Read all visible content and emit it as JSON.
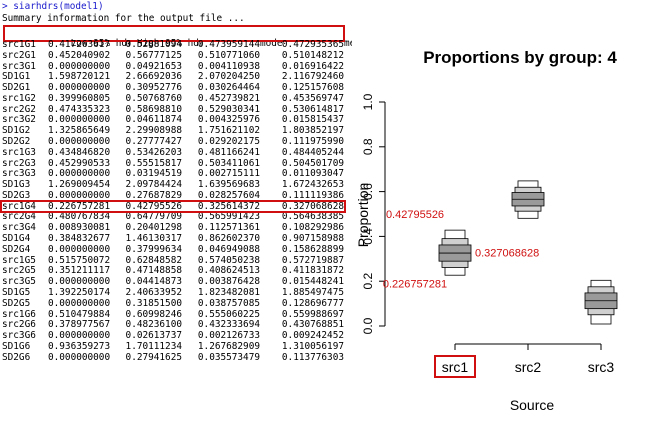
{
  "console": {
    "command": "> siarhdrs(model1)",
    "summary_line": "Summary information for the output file ...",
    "table": {
      "headers": [
        "Low 95% hdr",
        "High 95% hdr",
        "mode",
        "mean"
      ],
      "rows": [
        {
          "name": "src1G1",
          "values": [
            "0.417263617",
            "0.52881094",
            "0.473959144",
            "0.472935365"
          ]
        },
        {
          "name": "src2G1",
          "values": [
            "0.452040902",
            "0.56777125",
            "0.510771060",
            "0.510148212"
          ]
        },
        {
          "name": "src3G1",
          "values": [
            "0.000000000",
            "0.04921653",
            "0.004110938",
            "0.016916422"
          ]
        },
        {
          "name": "SD1G1",
          "values": [
            "1.598720121",
            "2.66692036",
            "2.070204250",
            "2.116792460"
          ]
        },
        {
          "name": "SD2G1",
          "values": [
            "0.000000000",
            "0.30952776",
            "0.030264464",
            "0.125157608"
          ]
        },
        {
          "name": "src1G2",
          "values": [
            "0.399960805",
            "0.50768760",
            "0.452739821",
            "0.453569747"
          ]
        },
        {
          "name": "src2G2",
          "values": [
            "0.474335323",
            "0.58698810",
            "0.529030341",
            "0.530614817"
          ]
        },
        {
          "name": "src3G2",
          "values": [
            "0.000000000",
            "0.04611874",
            "0.004325976",
            "0.015815437"
          ]
        },
        {
          "name": "SD1G2",
          "values": [
            "1.325865649",
            "2.29908988",
            "1.751621102",
            "1.803852197"
          ]
        },
        {
          "name": "SD2G2",
          "values": [
            "0.000000000",
            "0.27777427",
            "0.029202175",
            "0.111975990"
          ]
        },
        {
          "name": "src1G3",
          "values": [
            "0.434846820",
            "0.53426203",
            "0.481166241",
            "0.484405244"
          ]
        },
        {
          "name": "src2G3",
          "values": [
            "0.452990533",
            "0.55515817",
            "0.503411061",
            "0.504501709"
          ]
        },
        {
          "name": "src3G3",
          "values": [
            "0.000000000",
            "0.03194519",
            "0.002715111",
            "0.011093047"
          ]
        },
        {
          "name": "SD1G3",
          "values": [
            "1.269009454",
            "2.09784424",
            "1.639569683",
            "1.672432653"
          ]
        },
        {
          "name": "SD2G3",
          "values": [
            "0.000000000",
            "0.27687829",
            "0.028257604",
            "0.111119386"
          ]
        },
        {
          "name": "src1G4",
          "values": [
            "0.226757281",
            "0.42795526",
            "0.325614372",
            "0.327068628"
          ]
        },
        {
          "name": "src2G4",
          "values": [
            "0.480767834",
            "0.64779709",
            "0.565991423",
            "0.564638385"
          ]
        },
        {
          "name": "src3G4",
          "values": [
            "0.008930081",
            "0.20401298",
            "0.112571361",
            "0.108292986"
          ]
        },
        {
          "name": "SD1G4",
          "values": [
            "0.384832677",
            "1.46130317",
            "0.862602370",
            "0.907158988"
          ]
        },
        {
          "name": "SD2G4",
          "values": [
            "0.000000000",
            "0.37999634",
            "0.046949088",
            "0.158628899"
          ]
        },
        {
          "name": "src1G5",
          "values": [
            "0.515750072",
            "0.62848582",
            "0.574050238",
            "0.572719887"
          ]
        },
        {
          "name": "src2G5",
          "values": [
            "0.351211117",
            "0.47148858",
            "0.408624513",
            "0.411831872"
          ]
        },
        {
          "name": "src3G5",
          "values": [
            "0.000000000",
            "0.04414873",
            "0.003876428",
            "0.015448241"
          ]
        },
        {
          "name": "SD1G5",
          "values": [
            "1.392250174",
            "2.40633952",
            "1.823482081",
            "1.885497475"
          ]
        },
        {
          "name": "SD2G5",
          "values": [
            "0.000000000",
            "0.31851500",
            "0.038757085",
            "0.128696777"
          ]
        },
        {
          "name": "src1G6",
          "values": [
            "0.510479884",
            "0.60998246",
            "0.555060225",
            "0.559988697"
          ]
        },
        {
          "name": "src2G6",
          "values": [
            "0.378977567",
            "0.48236100",
            "0.432333694",
            "0.430768851"
          ]
        },
        {
          "name": "src3G6",
          "values": [
            "0.000000000",
            "0.02613737",
            "0.002126733",
            "0.009242452"
          ]
        },
        {
          "name": "SD1G6",
          "values": [
            "0.936359273",
            "1.70111234",
            "1.267682909",
            "1.310056197"
          ]
        },
        {
          "name": "SD2G6",
          "values": [
            "0.000000000",
            "0.27941625",
            "0.035573479",
            "0.113776303"
          ]
        }
      ]
    },
    "highlight_row": "src1G4",
    "highlight_color": "#d01010"
  },
  "chart_data": {
    "type": "boxplot-hdr",
    "title": "Proportions by group: 4",
    "xlabel": "Source",
    "ylabel": "Proportion",
    "categories": [
      "src1",
      "src2",
      "src3"
    ],
    "ylim": [
      0,
      1
    ],
    "yticks": [
      "0.0",
      "0.2",
      "0.4",
      "0.6",
      "0.8",
      "1.0"
    ],
    "hdr": [
      {
        "source": "src1",
        "low95": 0.226757281,
        "high95": 0.42795526,
        "mode": 0.325614372,
        "mean": 0.327068628
      },
      {
        "source": "src2",
        "low95": 0.480767834,
        "high95": 0.64779709,
        "mode": 0.565991423,
        "mean": 0.564638385
      },
      {
        "source": "src3",
        "low95": 0.008930081,
        "high95": 0.20401298,
        "mode": 0.112571361,
        "mean": 0.108292986
      }
    ],
    "annotations": [
      {
        "text": "0.42795526",
        "y": 0.5,
        "anchor": "src1",
        "side": "left-above"
      },
      {
        "text": "0.327068628",
        "y": 0.327068628,
        "anchor": "src1",
        "side": "right"
      },
      {
        "text": "0.226757281",
        "y": 0.19,
        "anchor": "src1",
        "side": "left-below"
      }
    ],
    "annotation_color": "#d01010",
    "highlight_category": "src1",
    "box_colors": [
      "#ffffff",
      "#d0d0d0",
      "#9a9a9a"
    ]
  }
}
